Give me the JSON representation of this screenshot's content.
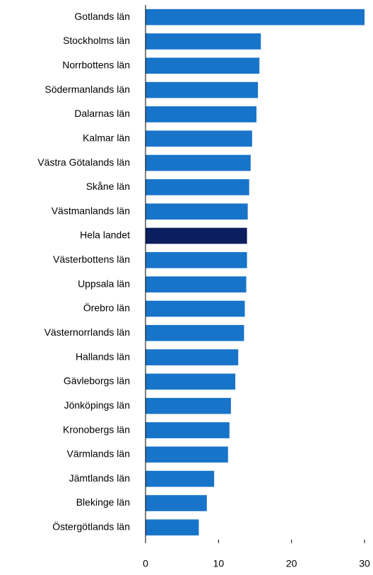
{
  "chart_data": {
    "type": "bar",
    "orientation": "horizontal",
    "categories": [
      "Gotlands län",
      "Stockholms län",
      "Norrbottens län",
      "Södermanlands län",
      "Dalarnas län",
      "Kalmar län",
      "Västra Götalands län",
      "Skåne län",
      "Västmanlands län",
      "Hela landet",
      "Västerbottens län",
      "Uppsala län",
      "Örebro län",
      "Västernorrlands län",
      "Hallands län",
      "Gävleborgs län",
      "Jönköpings län",
      "Kronobergs län",
      "Värmlands län",
      "Jämtlands län",
      "Blekinge län",
      "Östergötlands län"
    ],
    "values": [
      30,
      15.8,
      15.6,
      15.4,
      15.2,
      14.6,
      14.4,
      14.2,
      14.0,
      13.9,
      13.9,
      13.8,
      13.6,
      13.5,
      12.7,
      12.3,
      11.7,
      11.5,
      11.3,
      9.4,
      8.4,
      7.3
    ],
    "colors": [
      "#1874c9",
      "#1874c9",
      "#1874c9",
      "#1874c9",
      "#1874c9",
      "#1874c9",
      "#1874c9",
      "#1874c9",
      "#1874c9",
      "#0b1f5e",
      "#1874c9",
      "#1874c9",
      "#1874c9",
      "#1874c9",
      "#1874c9",
      "#1874c9",
      "#1874c9",
      "#1874c9",
      "#1874c9",
      "#1874c9",
      "#1874c9",
      "#1874c9"
    ],
    "xlim": [
      0,
      30
    ],
    "xticks": [
      0,
      10,
      20,
      30
    ],
    "grid": false
  }
}
